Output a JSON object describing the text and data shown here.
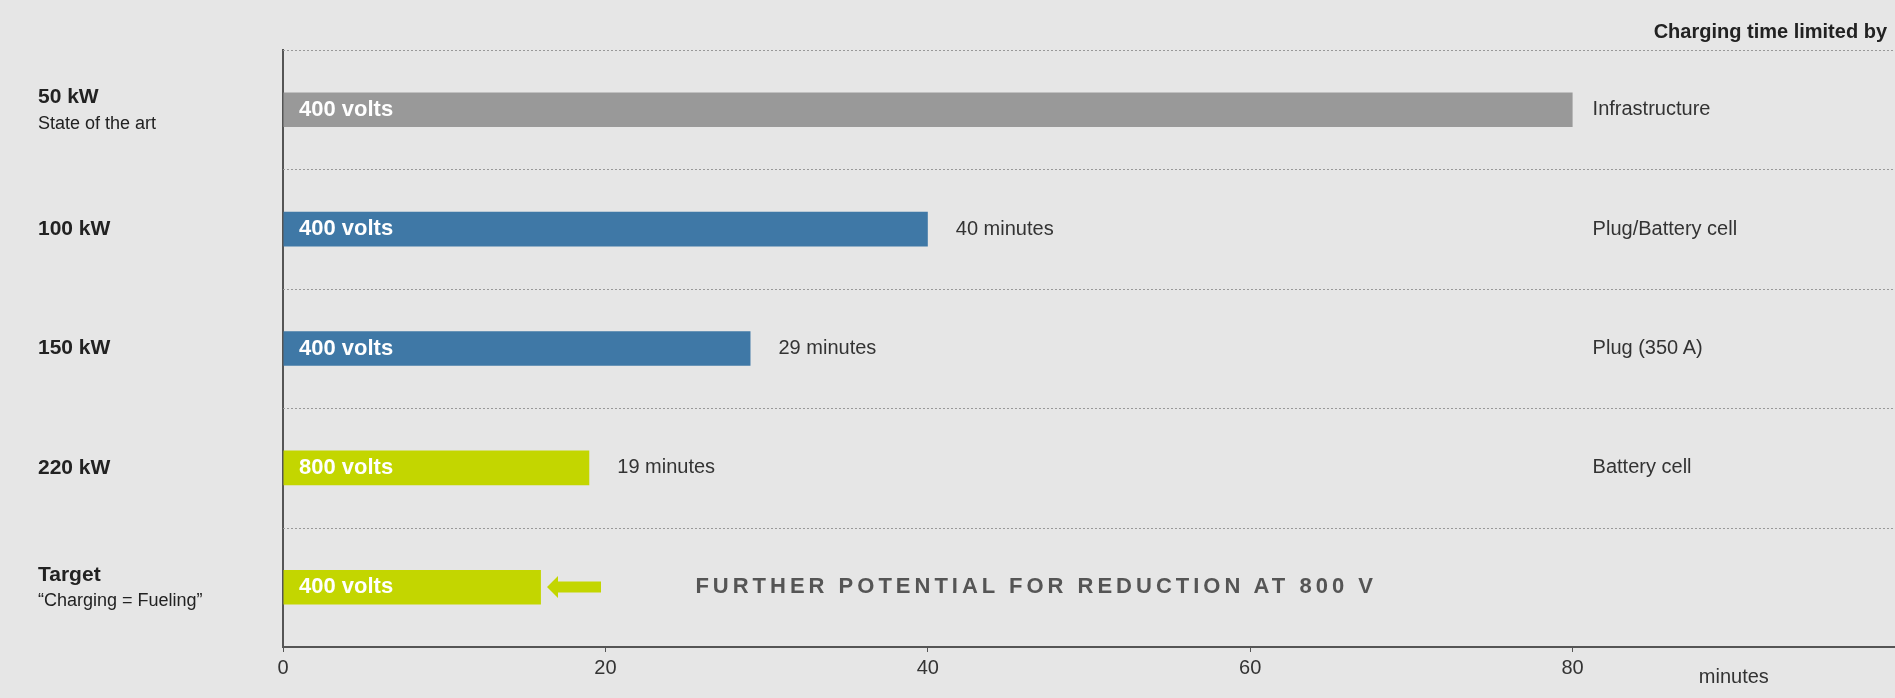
{
  "chart_data": {
    "type": "bar",
    "orientation": "horizontal",
    "categories": [
      "50 kW\nState of the art",
      "100 kW",
      "150 kW",
      "220 kW",
      "Target\n“Charging = Fueling”"
    ],
    "values": [
      80,
      40,
      29,
      19,
      16
    ],
    "colors": [
      "#999999",
      "#3f78a6",
      "#3f78a6",
      "#c3d600",
      "#c3d600"
    ],
    "value_labels": [
      null,
      "40 minutes",
      "29 minutes",
      "19 minutes",
      null
    ],
    "xlim": [
      0,
      100
    ],
    "xticks": [
      0,
      20,
      40,
      60,
      80
    ],
    "xlabel": "minutes",
    "grid": "y",
    "annotations": [
      "Charging time limited by",
      "400 volts",
      "400 volts",
      "400 volts",
      "800 volts",
      "400 volts",
      "Infrastructure",
      "Plug/Battery cell",
      "Plug (350 A)",
      "Battery cell",
      "FURTHER POTENTIAL FOR REDUCTION AT 800 V"
    ]
  }
}
